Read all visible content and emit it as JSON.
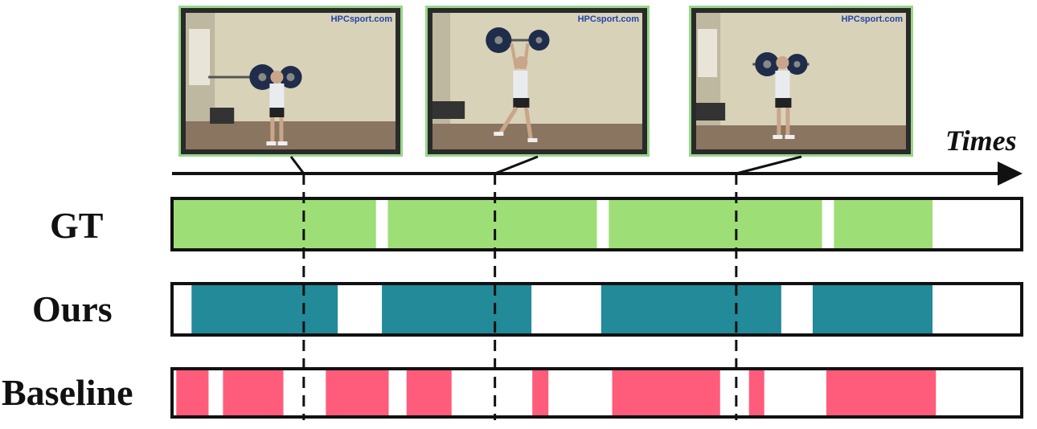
{
  "labels": {
    "gt": "GT",
    "ours": "Ours",
    "baseline": "Baseline",
    "time_axis": "Times"
  },
  "frames": [
    {
      "watermark": "HPCsport.com",
      "pose": "front-rack"
    },
    {
      "watermark": "HPCsport.com",
      "pose": "split-jerk"
    },
    {
      "watermark": "HPCsport.com",
      "pose": "front-rack"
    }
  ],
  "colors": {
    "gt": "#9ede77",
    "ours": "#228a99",
    "baseline": "#ff5c7c",
    "frame_border": "#97d68a",
    "axis": "#111111"
  },
  "timeline": {
    "time_range": [
      0,
      1
    ],
    "marker_times": [
      0.155,
      0.38,
      0.664
    ],
    "gt_segments": [
      [
        0,
        0.24
      ],
      [
        0.254,
        0.5
      ],
      [
        0.514,
        0.765
      ],
      [
        0.779,
        0.895
      ]
    ],
    "ours_segments": [
      [
        0.023,
        0.195
      ],
      [
        0.247,
        0.423
      ],
      [
        0.505,
        0.717
      ],
      [
        0.754,
        0.895
      ]
    ],
    "baseline_segments": [
      [
        0.005,
        0.043
      ],
      [
        0.06,
        0.131
      ],
      [
        0.181,
        0.255
      ],
      [
        0.276,
        0.329
      ],
      [
        0.424,
        0.443
      ],
      [
        0.518,
        0.645
      ],
      [
        0.679,
        0.697
      ],
      [
        0.77,
        0.899
      ]
    ]
  }
}
